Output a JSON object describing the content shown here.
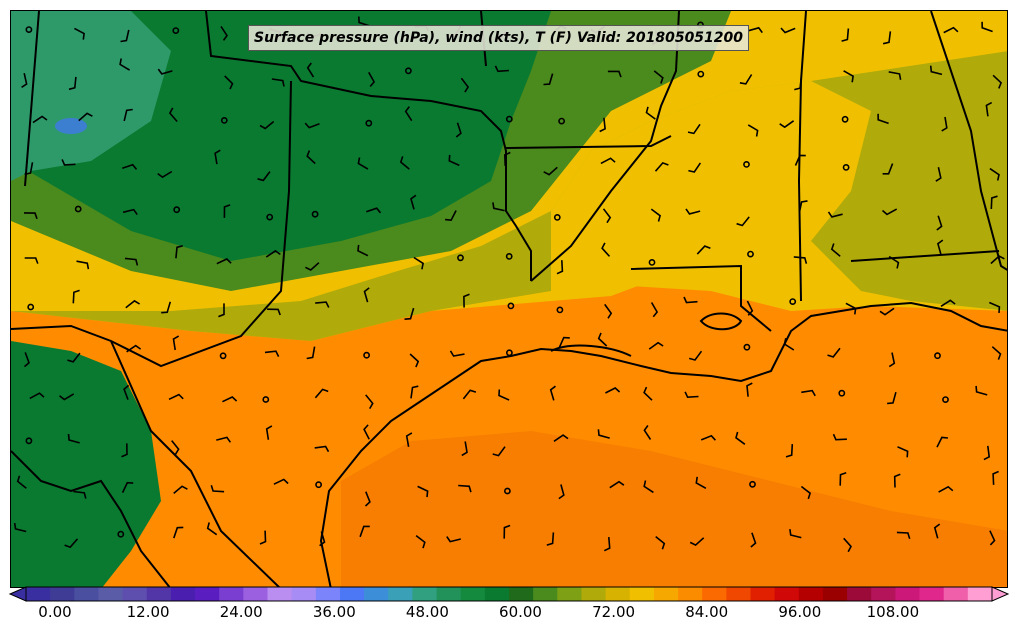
{
  "title": "Surface pressure (hPa), wind (kts), T (F) Valid: 201805051200",
  "colorbar": {
    "tick_labels": [
      "0.00",
      "12.00",
      "24.00",
      "36.00",
      "48.00",
      "60.00",
      "72.00",
      "84.00",
      "96.00",
      "108.00"
    ],
    "colors": [
      "#3a2fa0",
      "#3f3c96",
      "#4a4fa0",
      "#5a5ca8",
      "#5e4fae",
      "#5236a8",
      "#4a1fb0",
      "#5a1ec0",
      "#7a3fd0",
      "#9a60e0",
      "#b98ef0",
      "#a88cf6",
      "#7c84fb",
      "#4c78f5",
      "#3c8ed8",
      "#3aa0b8",
      "#30a080",
      "#22925a",
      "#138a3e",
      "#0a7a30",
      "#206a1c",
      "#4b8a1c",
      "#7ea014",
      "#b0aa0a",
      "#d8b200",
      "#f0c000",
      "#f7a800",
      "#fb8c00",
      "#fb6a00",
      "#f04800",
      "#e02000",
      "#d00808",
      "#b40000",
      "#9a0000",
      "#9c0a3a",
      "#b4145a",
      "#cc1878",
      "#e0288c",
      "#f060aa",
      "#ff9ed2"
    ]
  },
  "map_colors": {
    "ocean": "#ff8c00",
    "gulf_warm": "#f77e00",
    "coast_band": "#f0c000",
    "inland_olive": "#b0aa0a",
    "plains_green": "#4b8a1c",
    "dark_green": "#0a7a30",
    "mountain_teal": "#2e9a6a",
    "cold_spot": "#3c7ed0"
  }
}
